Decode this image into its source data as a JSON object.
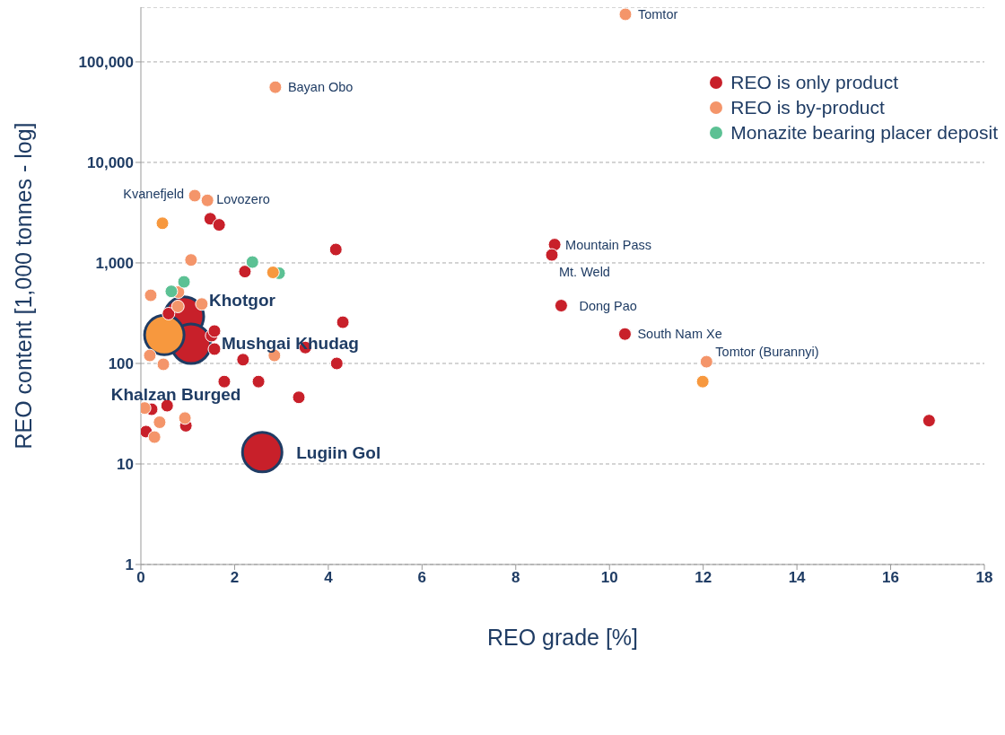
{
  "chart_data": {
    "type": "scatter",
    "xlabel": "REO grade [%]",
    "ylabel": "REO content [1,000 tonnes - log]",
    "xlim": [
      0,
      18
    ],
    "xticks": [
      0,
      2,
      4,
      6,
      8,
      10,
      12,
      14,
      16,
      18
    ],
    "ylim": [
      1,
      350000
    ],
    "yticks": [
      1,
      10,
      100,
      {
        "value": 1000,
        "label": "1,000"
      },
      {
        "value": 10000,
        "label": "10,000"
      },
      {
        "value": 100000,
        "label": "100,000"
      }
    ],
    "log": "y",
    "grid": "y",
    "legend": "top right",
    "marker": "circle",
    "series": [
      {
        "name": "REO is only product",
        "color": "#c8202a",
        "x": [
          1.48,
          1.67,
          4.16,
          2.22,
          8.83,
          8.77,
          8.97,
          10.33,
          16.82,
          4.31,
          3.51,
          1.51,
          1.57,
          1.57,
          2.18,
          4.18,
          1.78,
          2.51,
          3.37,
          0.56,
          0.23,
          0.11,
          0.96,
          0.59
        ],
        "values": [
          2750,
          2390,
          1360,
          820,
          1520,
          1200,
          376,
          196,
          27,
          257,
          144,
          189,
          210,
          139,
          109,
          100,
          66,
          66,
          46,
          38,
          35,
          21,
          24,
          313
        ]
      },
      {
        "name": "REO is by-product",
        "color": "#f4956a",
        "x": [
          10.34,
          2.87,
          1.15,
          1.42,
          1.07,
          0.21,
          0.8,
          1.3,
          0.79,
          0.19,
          0.48,
          2.85,
          0.08,
          0.4,
          0.29,
          0.94,
          12.07
        ],
        "values": [
          297000,
          56000,
          4670,
          4190,
          1070,
          476,
          512,
          390,
          369,
          120,
          98,
          120,
          36,
          26,
          18.5,
          28.6,
          104
        ]
      },
      {
        "name": "Monazite bearing placer deposit",
        "color": "#5cc194",
        "x": [
          2.38,
          2.95,
          0.92,
          0.65
        ],
        "values": [
          1020,
          790,
          648,
          521
        ]
      },
      {
        "color": "#f7983e",
        "x": [
          0.46,
          11.99,
          2.82
        ],
        "values": [
          2480,
          66,
          805
        ]
      },
      {
        "type": "bubble",
        "color": "#c8202a",
        "x": [
          0.92,
          1.07,
          2.59
        ],
        "values": [
          292,
          157,
          13.1
        ],
        "sizes": [
          1,
          1,
          1
        ]
      },
      {
        "type": "bubble",
        "color": "#f7983e",
        "x": [
          0.5
        ],
        "values": [
          192
        ],
        "sizes": [
          1
        ]
      }
    ],
    "annotations": [
      {
        "text": "Tomtor",
        "x": 10.34,
        "y": 297000
      },
      {
        "text": "Bayan Obo",
        "x": 2.87,
        "y": 56000
      },
      {
        "text": "Kvanefjeld",
        "x": 1.15,
        "y": 4670
      },
      {
        "text": "Lovozero",
        "x": 1.42,
        "y": 4190
      },
      {
        "text": "Mountain Pass",
        "x": 8.83,
        "y": 1520
      },
      {
        "text": "Mt. Weld",
        "x": 8.77,
        "y": 1200
      },
      {
        "text": "Dong Pao",
        "x": 8.97,
        "y": 376
      },
      {
        "text": "South Nam Xe",
        "x": 10.33,
        "y": 196
      },
      {
        "text": "Tomtor (Burannyi)",
        "x": 12.07,
        "y": 104
      },
      {
        "text": "Khotgor",
        "x": 0.92,
        "y": 292
      },
      {
        "text": "Mushgai Khudag",
        "x": 1.07,
        "y": 157
      },
      {
        "text": "Khalzan Burged",
        "x": 0.5,
        "y": 192
      },
      {
        "text": "Lugiin Gol",
        "x": 2.59,
        "y": 13.1
      }
    ]
  }
}
